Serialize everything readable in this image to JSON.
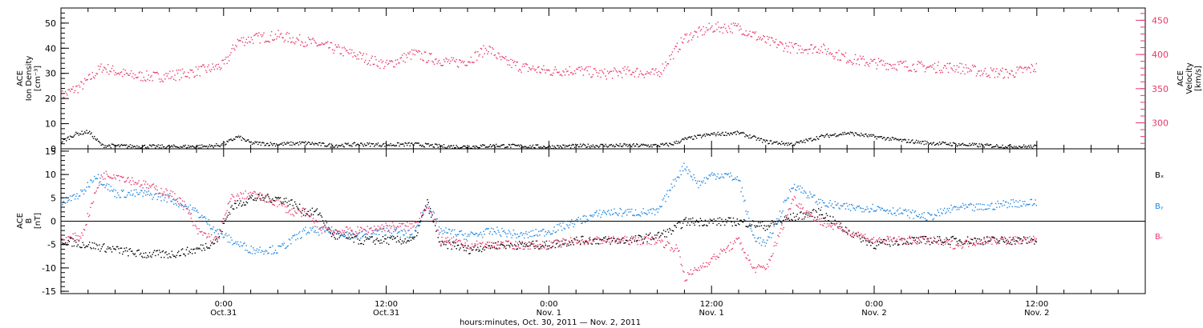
{
  "colors": {
    "pink": "#e8386a",
    "blue": "#1f86e0",
    "black": "#000000"
  },
  "xaxis": {
    "label": "hours:minutes, Oct. 30, 2011 — Nov.  2, 2011",
    "ticks": [
      {
        "time": "0:00",
        "date": "Oct.31",
        "hour": 24
      },
      {
        "time": "12:00",
        "date": "Oct.31",
        "hour": 36
      },
      {
        "time": "0:00",
        "date": "Nov. 1",
        "hour": 48
      },
      {
        "time": "12:00",
        "date": "Nov. 1",
        "hour": 60
      },
      {
        "time": "0:00",
        "date": "Nov. 2",
        "hour": 72
      },
      {
        "time": "12:00",
        "date": "Nov. 2",
        "hour": 84
      }
    ],
    "range_hours": [
      12,
      92
    ]
  },
  "chart_data": [
    {
      "type": "scatter",
      "panel": "top",
      "left_axis": {
        "label_lines": [
          "ACE",
          "Ion Density",
          "[cm⁻³]"
        ],
        "ylim": [
          0,
          56
        ],
        "ticks": [
          0,
          10,
          20,
          30,
          40,
          50
        ]
      },
      "right_axis": {
        "label_lines": [
          "ACE",
          "Velocity",
          "[km/s]"
        ],
        "ylim": [
          262,
          468
        ],
        "ticks": [
          300,
          350,
          400,
          450
        ],
        "color": "#e8386a"
      },
      "series": [
        {
          "axis": "right",
          "color": "#e8386a",
          "x": [
            12.0,
            13.5,
            15.0,
            17.0,
            19.0,
            21.0,
            23.0,
            24.0,
            25.0,
            26.5,
            28.0,
            30.0,
            32.0,
            34.0,
            36.0,
            38.0,
            39.0,
            40.0,
            41.0,
            42.0,
            43.5,
            44.5,
            46.0,
            48.0,
            50.0,
            52.0,
            54.0,
            56.0,
            58.0,
            60.0,
            62.0,
            64.0,
            66.0,
            68.0,
            70.0,
            72.0,
            74.0,
            76.0,
            78.0,
            80.0,
            82.0,
            84.0
          ],
          "y": [
            340,
            355,
            382,
            370,
            368,
            372,
            380,
            385,
            420,
            425,
            428,
            420,
            410,
            398,
            385,
            402,
            396,
            392,
            388,
            392,
            410,
            392,
            382,
            376,
            378,
            372,
            376,
            372,
            425,
            440,
            440,
            420,
            410,
            410,
            395,
            388,
            385,
            382,
            382,
            375,
            373,
            382
          ]
        },
        {
          "axis": "left",
          "color": "#000000",
          "x": [
            12.0,
            13.0,
            14.0,
            15.0,
            17.0,
            20.0,
            23.0,
            24.0,
            25.0,
            26.0,
            28.0,
            30.0,
            32.0,
            34.0,
            36.0,
            38.0,
            40.0,
            42.0,
            44.0,
            46.0,
            48.0,
            50.0,
            52.0,
            54.0,
            56.0,
            57.0,
            58.0,
            60.0,
            62.0,
            64.0,
            66.0,
            68.0,
            70.0,
            72.0,
            74.0,
            76.0,
            78.0,
            80.0,
            82.0,
            84.0
          ],
          "y": [
            3,
            6,
            7,
            1.5,
            1.2,
            1.0,
            1.2,
            2.0,
            5.0,
            2.5,
            2.0,
            2.5,
            1.5,
            2.0,
            1.8,
            2.0,
            1.2,
            1.0,
            1.5,
            1.2,
            1.0,
            1.3,
            1.5,
            1.5,
            1.5,
            2.0,
            4.0,
            6.0,
            6.5,
            3.0,
            2.0,
            5.0,
            6.5,
            5.0,
            3.5,
            2.5,
            2.0,
            1.5,
            1.2,
            1.0
          ]
        }
      ]
    },
    {
      "type": "scatter",
      "panel": "bottom",
      "left_axis": {
        "label_lines": [
          "ACE",
          "B",
          "[nT]"
        ],
        "ylim": [
          -15.5,
          15.5
        ],
        "ticks": [
          -15,
          -10,
          -5,
          0,
          5,
          10,
          15
        ]
      },
      "legend": [
        "Bₓ",
        "Bᵧ",
        "Bᵣ"
      ],
      "series": [
        {
          "name": "Bₓ",
          "color": "#000000",
          "x": [
            12.0,
            14.0,
            16.0,
            18.0,
            20.0,
            22.0,
            23.5,
            24.5,
            26.0,
            28.0,
            29.0,
            30.0,
            31.0,
            32.0,
            34.0,
            36.0,
            38.0,
            39.0,
            40.0,
            41.0,
            42.0,
            44.0,
            46.0,
            48.0,
            50.0,
            52.0,
            54.0,
            56.0,
            57.0,
            58.0,
            60.0,
            62.0,
            64.0,
            66.0,
            68.0,
            70.0,
            72.0,
            74.0,
            76.0,
            78.0,
            80.0,
            82.0,
            84.0
          ],
          "y": [
            -4,
            -5,
            -6,
            -7,
            -7,
            -6,
            -4,
            3,
            5,
            5,
            4,
            2,
            2,
            -3,
            -4,
            -4,
            -4,
            4,
            -5,
            -5,
            -6,
            -5,
            -5,
            -5,
            -4,
            -4,
            -4,
            -3,
            -2,
            0,
            0,
            0,
            -1,
            1,
            2,
            -2,
            -5,
            -4,
            -4,
            -4,
            -4,
            -4,
            -4
          ]
        },
        {
          "name": "Bᵧ",
          "color": "#1f86e0",
          "x": [
            12.0,
            13.5,
            14.5,
            16.0,
            18.0,
            20.0,
            22.0,
            23.5,
            24.5,
            26.0,
            28.0,
            30.0,
            32.0,
            34.0,
            36.0,
            38.0,
            39.0,
            40.0,
            42.0,
            44.0,
            46.0,
            48.0,
            50.0,
            52.0,
            54.0,
            56.0,
            57.5,
            58.0,
            59.0,
            60.0,
            61.0,
            62.0,
            63.0,
            64.0,
            66.0,
            67.0,
            68.0,
            70.0,
            72.0,
            74.0,
            76.0,
            78.0,
            80.0,
            82.0,
            84.0
          ],
          "y": [
            4,
            6,
            10,
            6,
            6,
            5,
            2,
            -2,
            -4,
            -6,
            -6,
            -2,
            -2,
            -3,
            -2,
            -3,
            4,
            -2,
            -3,
            -2,
            -3,
            -2,
            0,
            2,
            2,
            2,
            10,
            12,
            8,
            10,
            10,
            9,
            -3,
            -5,
            8,
            6,
            4,
            3,
            3,
            2,
            1,
            3,
            3,
            4,
            4
          ]
        },
        {
          "name": "Bᵣ",
          "color": "#e8386a",
          "x": [
            12.0,
            13.5,
            14.5,
            15.0,
            16.0,
            18.0,
            20.0,
            21.0,
            22.0,
            23.5,
            24.5,
            26.0,
            28.0,
            29.0,
            30.0,
            31.0,
            32.0,
            34.0,
            36.0,
            38.0,
            39.0,
            40.0,
            42.0,
            44.0,
            46.0,
            48.0,
            50.0,
            52.0,
            54.0,
            56.0,
            57.5,
            58.0,
            59.0,
            60.0,
            61.0,
            62.0,
            63.0,
            64.0,
            66.0,
            67.0,
            68.0,
            70.0,
            72.0,
            73.0,
            74.0,
            76.0,
            78.0,
            80.0,
            82.0,
            84.0
          ],
          "y": [
            -4,
            -3,
            6,
            10,
            10,
            8,
            6,
            4,
            -2,
            -4,
            5,
            6,
            4,
            2,
            2,
            -1,
            -2,
            -2,
            -1,
            -1,
            4,
            -4,
            -5,
            -5,
            -5,
            -5,
            -4,
            -4,
            -4,
            -4,
            -6,
            -12,
            -10,
            -8,
            -6,
            -4,
            -10,
            -10,
            5,
            2,
            0,
            -2,
            -4,
            -4,
            -4,
            -4,
            -5,
            -4,
            -4,
            -4
          ]
        }
      ]
    }
  ]
}
